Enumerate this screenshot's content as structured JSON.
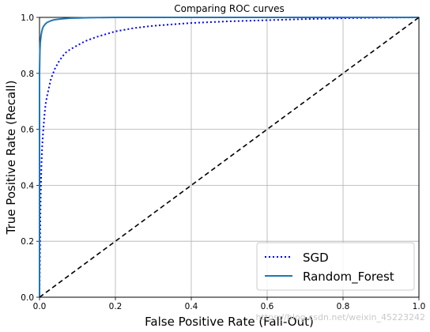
{
  "chart_data": {
    "type": "line",
    "title": "Comparing ROC curves",
    "xlabel": "False Positive Rate (Fall-Out)",
    "ylabel": "True Positive Rate (Recall)",
    "xlim": [
      0.0,
      1.0
    ],
    "ylim": [
      0.0,
      1.0
    ],
    "xticks": [
      "0.0",
      "0.2",
      "0.4",
      "0.6",
      "0.8",
      "1.0"
    ],
    "yticks": [
      "0.0",
      "0.2",
      "0.4",
      "0.6",
      "0.8",
      "1.0"
    ],
    "grid": true,
    "legend_position": "bottom-right",
    "series": [
      {
        "name": "SGD",
        "color": "#0000ff",
        "linestyle": "dotted",
        "x": [
          0.0,
          0.0005,
          0.001,
          0.002,
          0.003,
          0.005,
          0.007,
          0.01,
          0.013,
          0.016,
          0.02,
          0.025,
          0.03,
          0.04,
          0.05,
          0.06,
          0.07,
          0.08,
          0.1,
          0.12,
          0.15,
          0.2,
          0.25,
          0.3,
          0.4,
          0.5,
          0.6,
          0.7,
          0.8,
          0.9,
          1.0
        ],
        "y": [
          0.0,
          0.08,
          0.14,
          0.27,
          0.36,
          0.47,
          0.54,
          0.6,
          0.65,
          0.69,
          0.72,
          0.75,
          0.78,
          0.815,
          0.84,
          0.86,
          0.875,
          0.885,
          0.9,
          0.915,
          0.93,
          0.95,
          0.962,
          0.97,
          0.98,
          0.986,
          0.99,
          0.994,
          0.997,
          0.999,
          1.0
        ]
      },
      {
        "name": "Random_Forest",
        "color": "#1f77b4",
        "linestyle": "solid",
        "x": [
          0.0,
          0.0,
          0.001,
          0.002,
          0.004,
          0.006,
          0.008,
          0.01,
          0.015,
          0.02,
          0.03,
          0.04,
          0.06,
          0.08,
          0.1,
          0.13,
          0.2,
          0.4,
          0.6,
          0.8,
          1.0
        ],
        "y": [
          0.0,
          0.8,
          0.88,
          0.91,
          0.935,
          0.95,
          0.96,
          0.967,
          0.976,
          0.982,
          0.988,
          0.992,
          0.995,
          0.997,
          0.998,
          0.999,
          1.0,
          1.0,
          1.0,
          1.0,
          1.0
        ]
      },
      {
        "color": "#000000",
        "linestyle": "dashed",
        "x": [
          0.0,
          1.0
        ],
        "y": [
          0.0,
          1.0
        ]
      }
    ],
    "watermark": "https://blog.csdn.net/weixin_45223242"
  }
}
